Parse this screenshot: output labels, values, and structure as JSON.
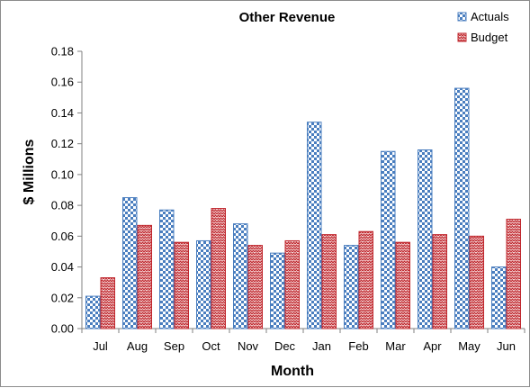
{
  "chart_data": {
    "type": "bar",
    "title": "Other Revenue",
    "xlabel": "Month",
    "ylabel": "$ Millions",
    "categories": [
      "Jul",
      "Aug",
      "Sep",
      "Oct",
      "Nov",
      "Dec",
      "Jan",
      "Feb",
      "Mar",
      "Apr",
      "May",
      "Jun"
    ],
    "series": [
      {
        "name": "Actuals",
        "color": "#4a7ebf",
        "pattern": "checkerboard",
        "values": [
          0.021,
          0.085,
          0.077,
          0.057,
          0.068,
          0.049,
          0.134,
          0.054,
          0.115,
          0.116,
          0.156,
          0.04
        ]
      },
      {
        "name": "Budget",
        "color": "#c0272d",
        "pattern": "zigzag-weave",
        "values": [
          0.033,
          0.067,
          0.056,
          0.078,
          0.054,
          0.057,
          0.061,
          0.063,
          0.056,
          0.061,
          0.06,
          0.071
        ]
      }
    ],
    "ylim": [
      0,
      0.18
    ],
    "yticks": [
      "0.00",
      "0.02",
      "0.04",
      "0.06",
      "0.08",
      "0.10",
      "0.12",
      "0.14",
      "0.16",
      "0.18"
    ],
    "grid": false,
    "legend_position": "top-right"
  }
}
